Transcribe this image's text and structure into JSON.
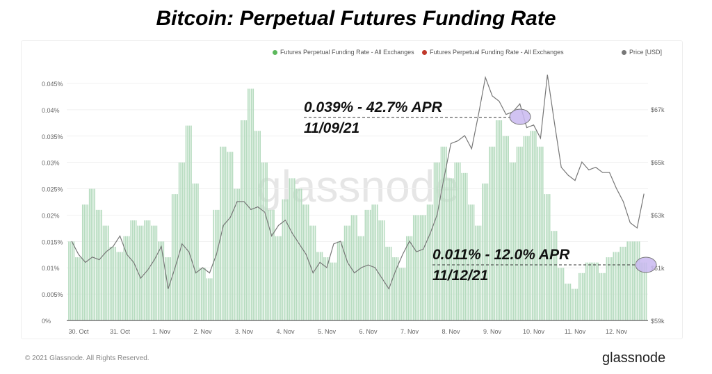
{
  "title": "Bitcoin: Perpetual Futures Funding Rate",
  "footer": {
    "copyright": "© 2021 Glassnode. All Rights Reserved.",
    "logo": "glassnode"
  },
  "watermark": "glassnode",
  "annotations": [
    {
      "line1": "0.039% - 42.7% APR",
      "line2": "11/09/21"
    },
    {
      "line1": "0.011% - 12.0% APR",
      "line2": "11/12/21"
    }
  ],
  "colors": {
    "funding_bars": "#b7dcc0",
    "price_line": "#777777",
    "highlight": "#c9b8f0",
    "legend_red": "#c0392b"
  },
  "chart_data": {
    "type": "bar+line",
    "legend_position": "top-right",
    "legend": [
      {
        "label": "Futures Perpetual Funding Rate - All Exchanges",
        "color": "#5cb85c"
      },
      {
        "label": "Futures Perpetual Funding Rate - All Exchanges",
        "color": "#c0392b"
      },
      {
        "label": "Price [USD]",
        "color": "#777777"
      }
    ],
    "x_tick_labels": [
      "30. Oct",
      "31. Oct",
      "1. Nov",
      "2. Nov",
      "3. Nov",
      "4. Nov",
      "5. Nov",
      "6. Nov",
      "7. Nov",
      "8. Nov",
      "9. Nov",
      "10. Nov",
      "11. Nov",
      "12. Nov"
    ],
    "y_left": {
      "ticks": [
        "0%",
        "0.005%",
        "0.01%",
        "0.015%",
        "0.02%",
        "0.025%",
        "0.03%",
        "0.035%",
        "0.04%",
        "0.045%"
      ],
      "range": [
        0,
        0.045
      ],
      "unit": "%"
    },
    "y_right": {
      "ticks": [
        "$59k",
        "$61k",
        "$63k",
        "$65k",
        "$67k"
      ],
      "range": [
        59,
        68.6
      ],
      "unit": "k USD"
    },
    "grid": true,
    "x_start": "2021-10-29T20:00",
    "x_interval_hours": 4,
    "funding_rate_pct": [
      0.015,
      0.012,
      0.022,
      0.025,
      0.021,
      0.018,
      0.014,
      0.013,
      0.016,
      0.019,
      0.018,
      0.019,
      0.018,
      0.015,
      0.012,
      0.024,
      0.03,
      0.037,
      0.026,
      0.01,
      0.008,
      0.021,
      0.033,
      0.032,
      0.025,
      0.038,
      0.044,
      0.036,
      0.03,
      0.021,
      0.016,
      0.023,
      0.027,
      0.025,
      0.022,
      0.018,
      0.013,
      0.012,
      0.011,
      0.015,
      0.018,
      0.02,
      0.016,
      0.021,
      0.022,
      0.019,
      0.014,
      0.012,
      0.01,
      0.016,
      0.02,
      0.02,
      0.022,
      0.03,
      0.033,
      0.027,
      0.03,
      0.028,
      0.022,
      0.018,
      0.026,
      0.033,
      0.038,
      0.035,
      0.03,
      0.033,
      0.035,
      0.036,
      0.033,
      0.024,
      0.017,
      0.01,
      0.007,
      0.006,
      0.009,
      0.011,
      0.011,
      0.009,
      0.012,
      0.013,
      0.014,
      0.015,
      0.015,
      0.011
    ],
    "price_k_usd": [
      62.0,
      61.5,
      61.2,
      61.4,
      61.3,
      61.6,
      61.8,
      62.2,
      61.5,
      61.2,
      60.6,
      60.9,
      61.3,
      61.8,
      60.2,
      61.0,
      61.9,
      61.6,
      60.8,
      61.0,
      60.8,
      61.5,
      62.6,
      62.9,
      63.5,
      63.5,
      63.2,
      63.3,
      63.1,
      62.2,
      62.6,
      62.8,
      62.3,
      61.9,
      61.5,
      60.8,
      61.2,
      61.0,
      61.9,
      62.0,
      61.2,
      60.8,
      61.0,
      61.1,
      61.0,
      60.6,
      60.2,
      60.9,
      61.5,
      62.0,
      61.6,
      61.7,
      62.3,
      63.0,
      64.4,
      65.7,
      65.8,
      66.0,
      65.5,
      66.8,
      68.2,
      67.5,
      67.3,
      66.8,
      66.9,
      67.2,
      66.3,
      66.4,
      65.9,
      68.3,
      66.5,
      64.8,
      64.5,
      64.3,
      65.0,
      64.7,
      64.8,
      64.6,
      64.6,
      64.0,
      63.5,
      62.7,
      62.5,
      63.8
    ],
    "highlights": [
      {
        "date": "2021-11-09",
        "funding_rate_pct": 0.039,
        "apr_pct": 42.7
      },
      {
        "date": "2021-11-12",
        "funding_rate_pct": 0.011,
        "apr_pct": 12.0
      }
    ]
  }
}
